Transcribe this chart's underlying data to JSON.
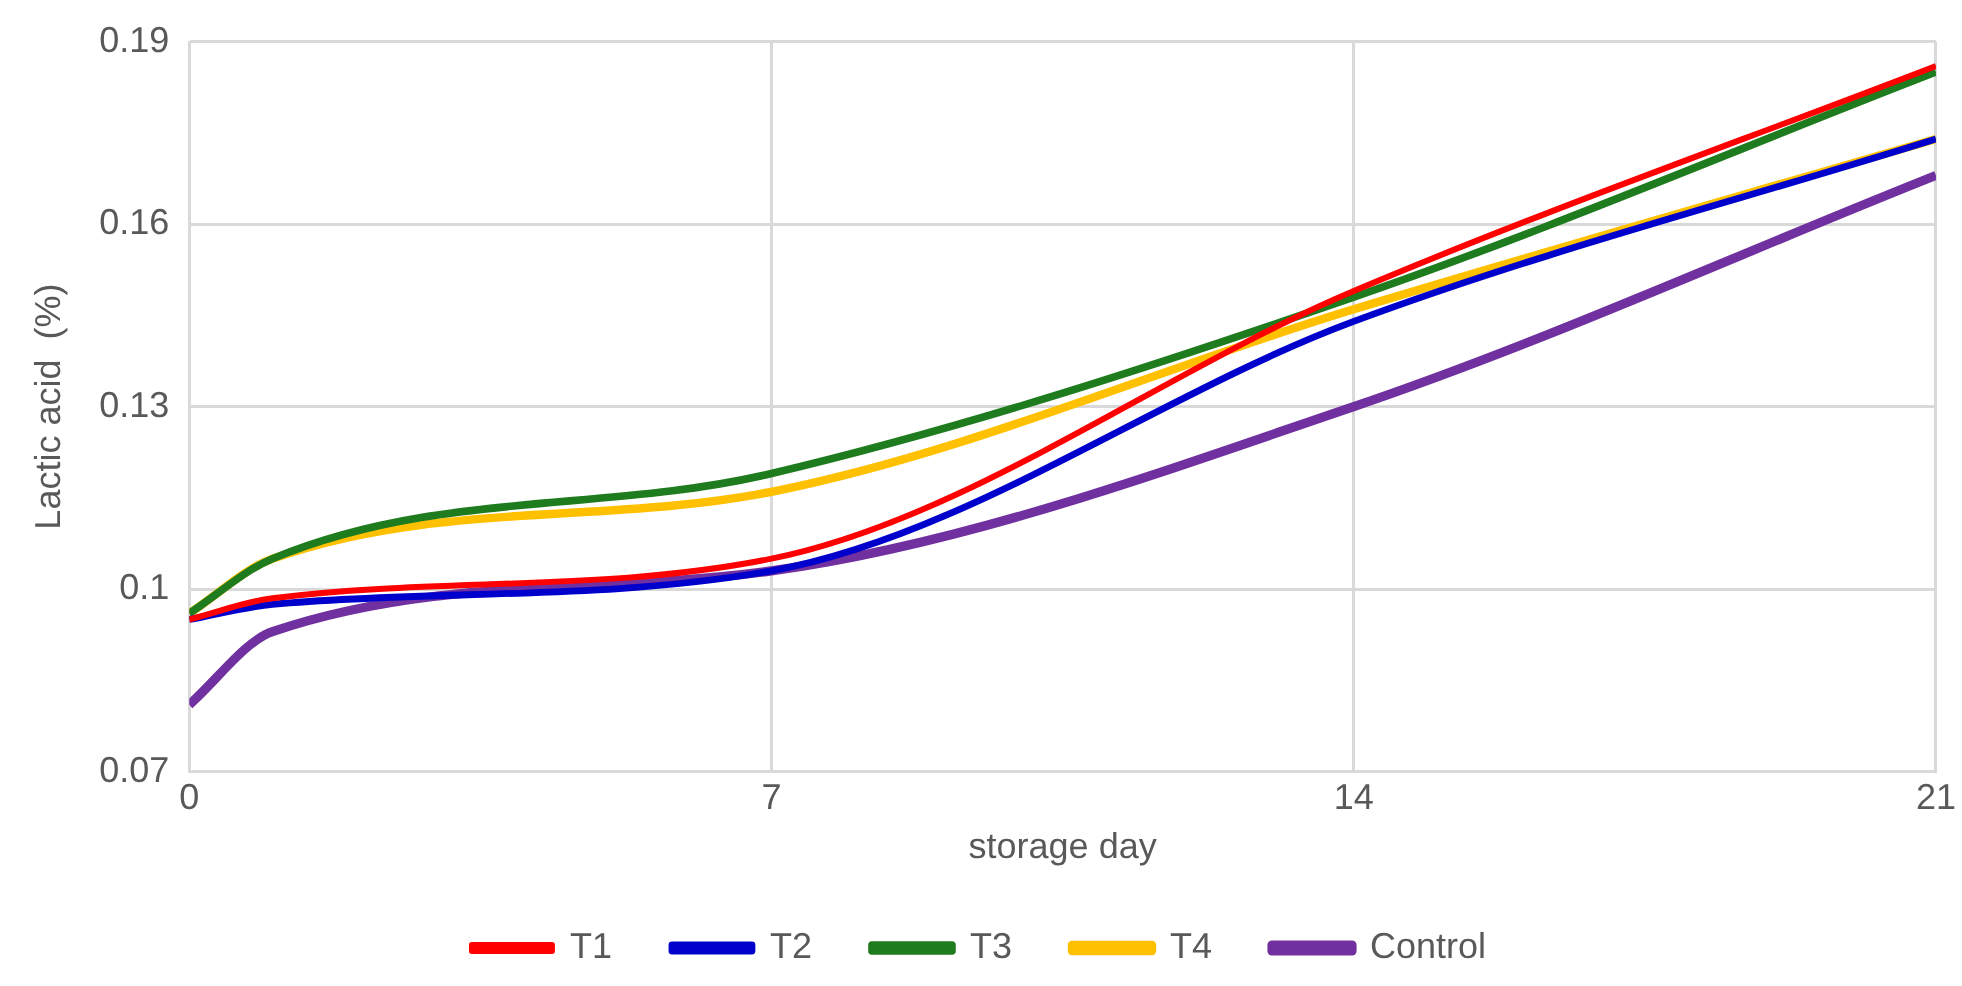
{
  "chart_data": {
    "type": "line",
    "xlabel": "storage day",
    "ylabel": "Lactic acid  (%)",
    "x": [
      0,
      1,
      7,
      14,
      21
    ],
    "xlim": [
      0,
      21
    ],
    "xticks": [
      0,
      7,
      14,
      21
    ],
    "ylim": [
      0.07,
      0.19
    ],
    "yticks": [
      0.07,
      {
        "value": 0.1,
        "label": "0.1"
      },
      0.13,
      0.16,
      0.19
    ],
    "grid": true,
    "legend": "bottom",
    "marker": "none",
    "line_style": "solid",
    "series": [
      {
        "name": "T1",
        "color": "#ff0000",
        "values": [
          0.095,
          0.0985,
          0.105,
          0.149,
          0.186
        ]
      },
      {
        "name": "T2",
        "color": "#0000cc",
        "values": [
          0.095,
          0.0975,
          0.103,
          0.144,
          0.174
        ]
      },
      {
        "name": "T3",
        "color": "#1e7b1e",
        "values": [
          0.096,
          0.105,
          0.119,
          0.148,
          0.185
        ]
      },
      {
        "name": "T4",
        "color": "#ffc000",
        "values": [
          0.096,
          0.105,
          0.116,
          0.146,
          0.174
        ]
      },
      {
        "name": "Control",
        "color": "#7030a0",
        "values": [
          0.081,
          0.093,
          0.103,
          0.13,
          0.168
        ]
      }
    ]
  }
}
